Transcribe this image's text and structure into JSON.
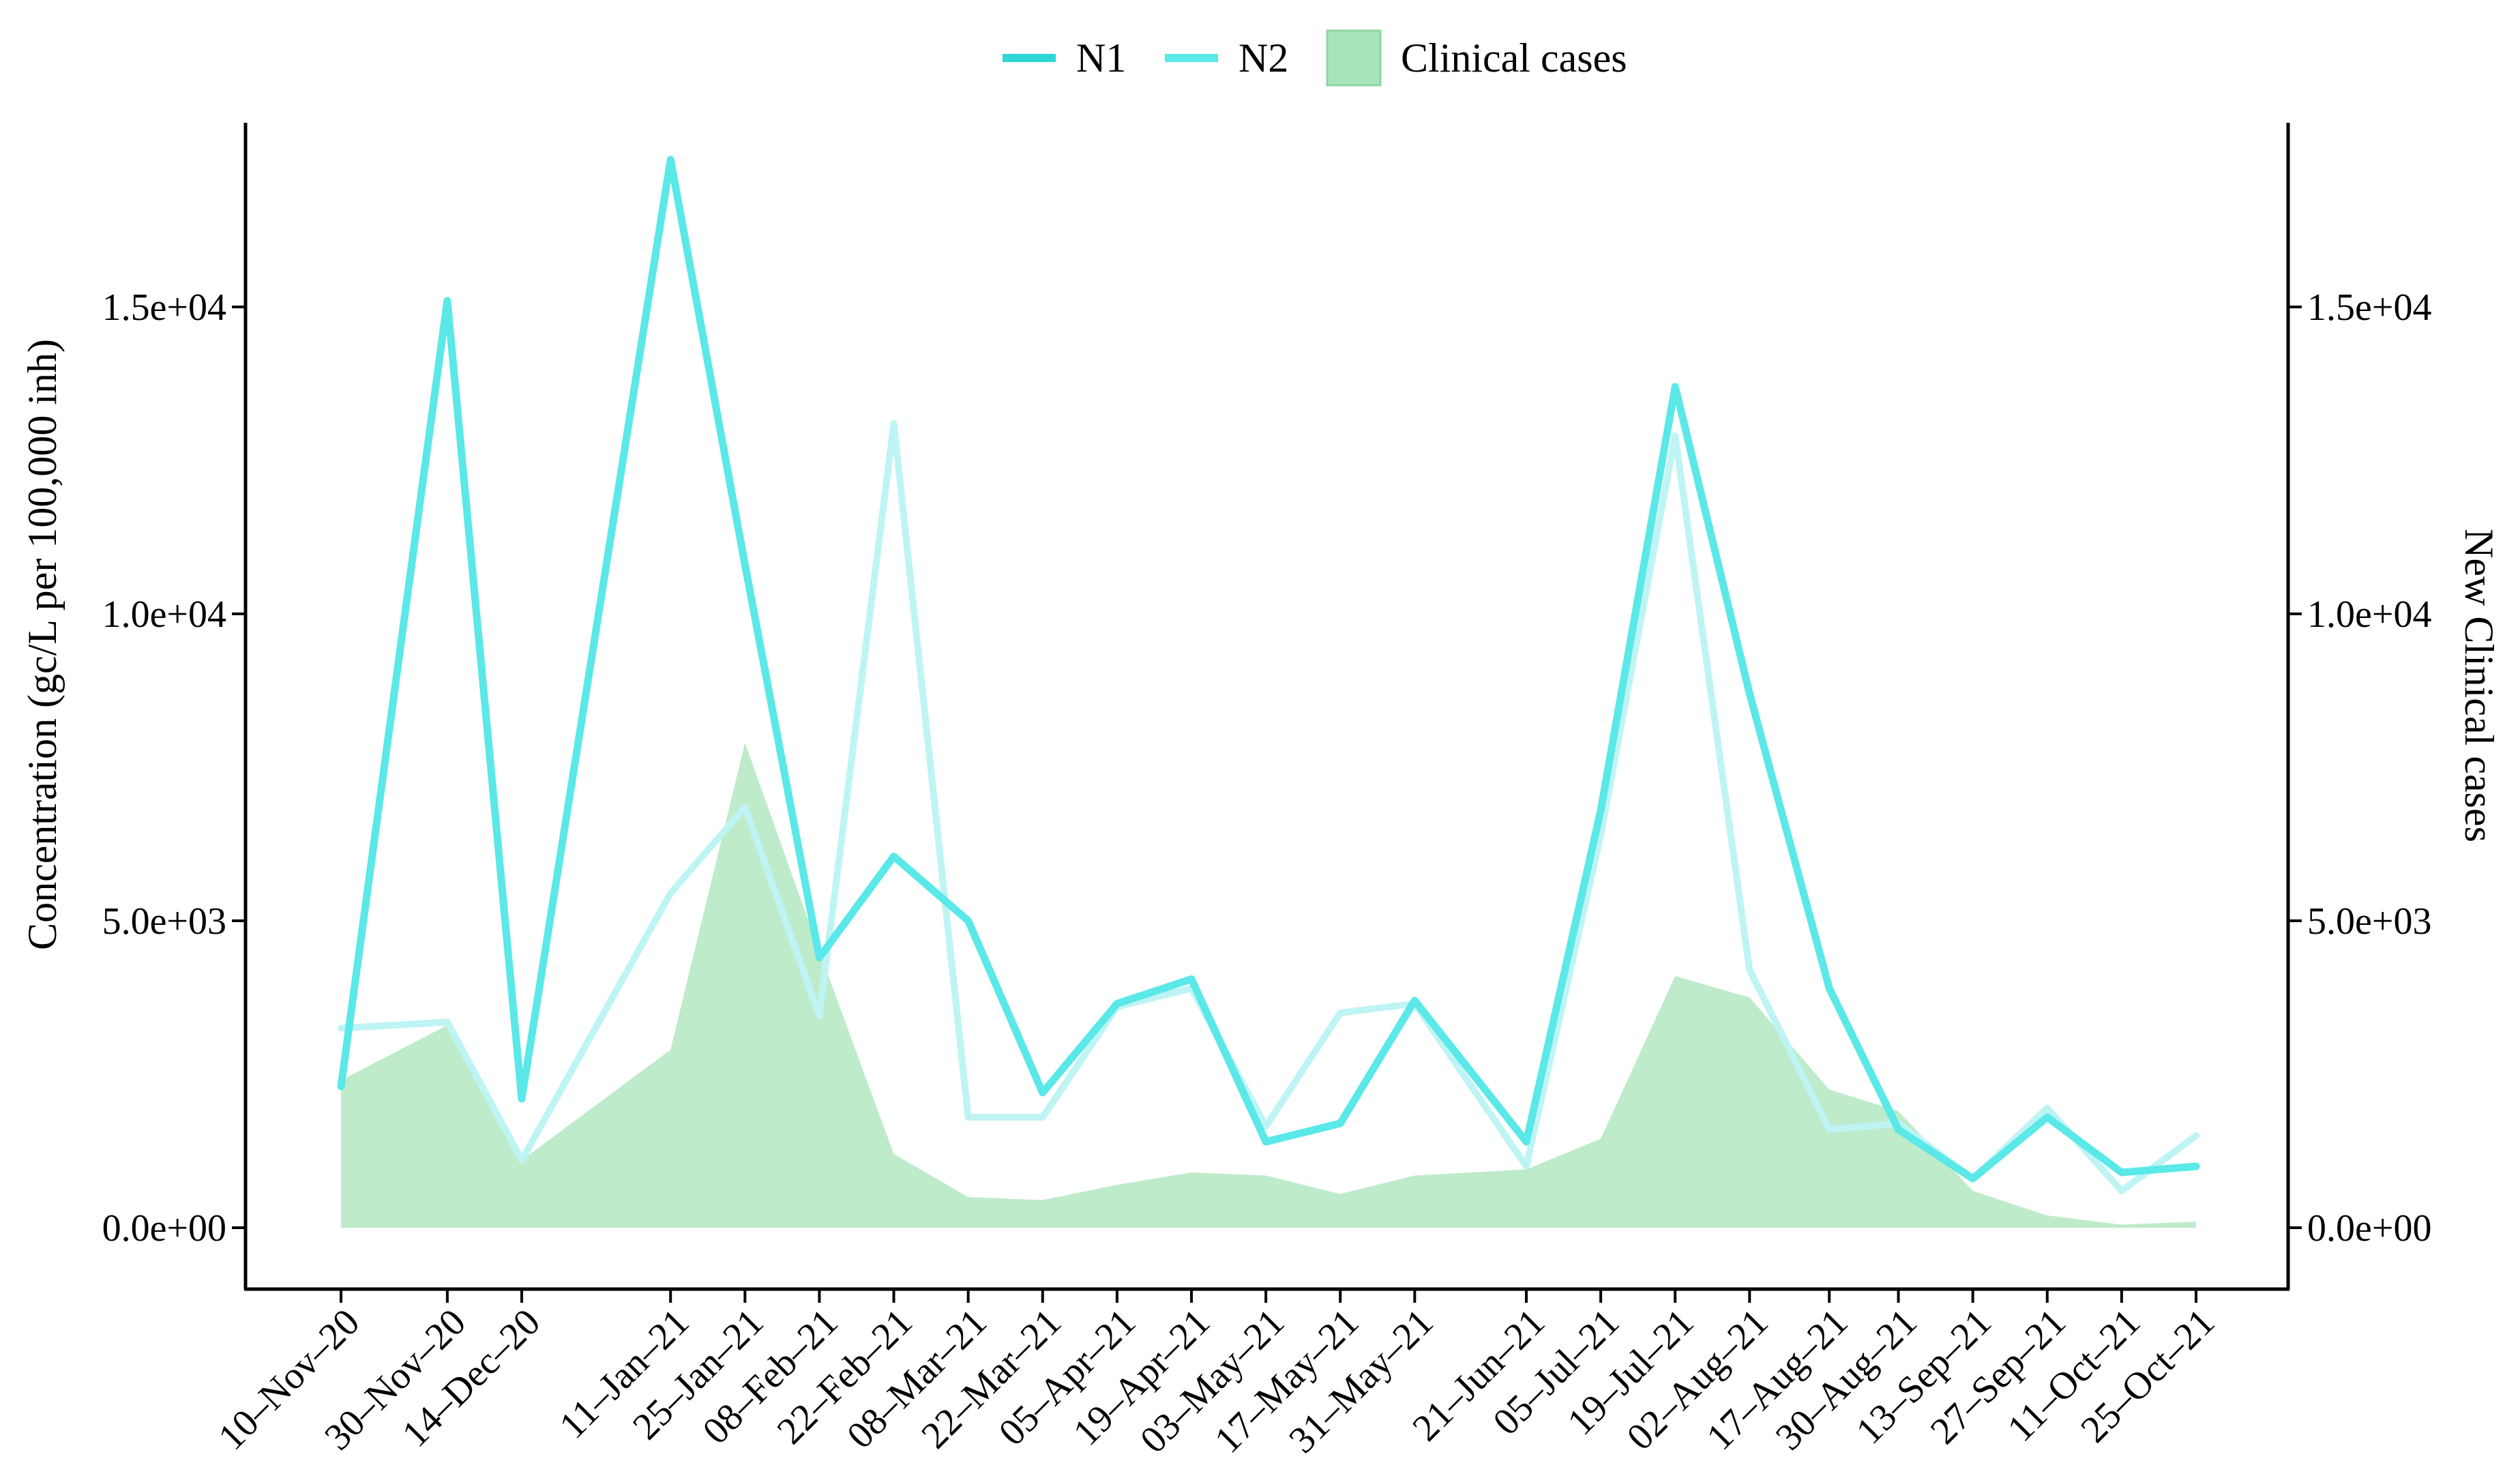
{
  "chart_data": {
    "type": "line",
    "x": [
      "10–Nov–20",
      "30–Nov–20",
      "14–Dec–20",
      "11–Jan–21",
      "25–Jan–21",
      "08–Feb–21",
      "22–Feb–21",
      "08–Mar–21",
      "22–Mar–21",
      "05–Apr–21",
      "19–Apr–21",
      "03–May–21",
      "17–May–21",
      "31–May–21",
      "21–Jun–21",
      "05–Jul–21",
      "19–Jul–21",
      "02–Aug–21",
      "17–Aug–21",
      "30–Aug–21",
      "13–Sep–21",
      "27–Sep–21",
      "11–Oct–21",
      "25–Oct–21"
    ],
    "x_dates": [
      "2020-11-10",
      "2020-11-30",
      "2020-12-14",
      "2021-01-11",
      "2021-01-25",
      "2021-02-08",
      "2021-02-22",
      "2021-03-08",
      "2021-03-22",
      "2021-04-05",
      "2021-04-19",
      "2021-05-03",
      "2021-05-17",
      "2021-05-31",
      "2021-06-21",
      "2021-07-05",
      "2021-07-19",
      "2021-08-02",
      "2021-08-17",
      "2021-08-30",
      "2021-09-13",
      "2021-09-27",
      "2021-10-11",
      "2021-10-25"
    ],
    "series": [
      {
        "name": "N1",
        "color": "#5ae8e8",
        "axis": "left",
        "values": [
          2300,
          15100,
          2100,
          17400,
          10800,
          4400,
          6050,
          5000,
          2200,
          3650,
          4050,
          1400,
          1700,
          3700,
          1400,
          6800,
          13700,
          8700,
          3900,
          1600,
          800,
          1800,
          900,
          1000
        ]
      },
      {
        "name": "N2",
        "color": "#bff4f4",
        "axis": "left",
        "values": [
          3250,
          3350,
          1100,
          5450,
          6850,
          3450,
          13100,
          1800,
          1800,
          3600,
          3900,
          1650,
          3500,
          3650,
          1000,
          6400,
          12900,
          4200,
          1600,
          1700,
          800,
          1950,
          600,
          1500
        ]
      },
      {
        "name": "Clinical cases",
        "color": "#a8e4b8",
        "axis": "right",
        "type": "area",
        "values": [
          2400,
          3300,
          1100,
          2900,
          7900,
          4500,
          1200,
          500,
          450,
          700,
          900,
          850,
          550,
          850,
          950,
          1450,
          4100,
          3750,
          2250,
          1900,
          600,
          200,
          50,
          100
        ]
      }
    ],
    "xlabel": "",
    "ylabel": "Concentration (gc/L per 100,000 inh)",
    "y2label": "New Clinical cases",
    "ylim": [
      -1000,
      18000
    ],
    "y2lim": [
      -1000,
      18000
    ],
    "yticks": [
      "0.0e+00",
      "5.0e+03",
      "1.0e+04",
      "1.5e+04"
    ],
    "yticks_values": [
      0,
      5000,
      10000,
      15000
    ],
    "y2ticks": [
      "0.0e+00",
      "5.0e+03",
      "1.0e+04",
      "1.5e+04"
    ],
    "y2ticks_values": [
      0,
      5000,
      10000,
      15000
    ],
    "legend": {
      "position": "top",
      "entries": [
        {
          "label": "N1",
          "symbol": "line",
          "color": "#2fd6d6"
        },
        {
          "label": "N2",
          "symbol": "line",
          "color": "#5ae8e8"
        },
        {
          "label": "Clinical cases",
          "symbol": "box",
          "color": "#a8e4b8"
        }
      ]
    },
    "grid": false
  }
}
